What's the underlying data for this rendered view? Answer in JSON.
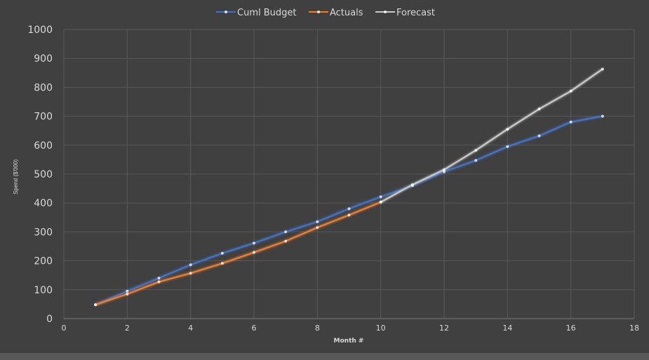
{
  "chart_data": {
    "type": "line",
    "title": "",
    "xlabel": "Month #",
    "ylabel": "Spend ($'000)",
    "xlim": [
      0,
      18
    ],
    "ylim": [
      0,
      1000
    ],
    "x_ticks": [
      0,
      2,
      4,
      6,
      8,
      10,
      12,
      14,
      16,
      18
    ],
    "y_ticks": [
      0,
      100,
      200,
      300,
      400,
      500,
      600,
      700,
      800,
      900,
      1000
    ],
    "grid": true,
    "legend_position": "top-center",
    "series": [
      {
        "name": "Cuml Budget",
        "color": "#4472C4",
        "x": [
          1,
          2,
          3,
          4,
          5,
          6,
          7,
          8,
          9,
          10,
          11,
          12,
          13,
          14,
          15,
          16,
          17
        ],
        "values": [
          48,
          95,
          140,
          186,
          226,
          261,
          300,
          335,
          380,
          421,
          460,
          508,
          547,
          595,
          632,
          680,
          700
        ]
      },
      {
        "name": "Actuals",
        "color": "#ED7D31",
        "x": [
          1,
          2,
          3,
          4,
          5,
          6,
          7,
          8,
          9,
          10
        ],
        "values": [
          48,
          85,
          127,
          157,
          191,
          229,
          268,
          315,
          358,
          403
        ]
      },
      {
        "name": "Forecast",
        "color": "#C9C9C9",
        "x": [
          10,
          11,
          12,
          13,
          14,
          15,
          16,
          17
        ],
        "values": [
          403,
          463,
          515,
          582,
          655,
          725,
          787,
          863
        ]
      }
    ]
  }
}
